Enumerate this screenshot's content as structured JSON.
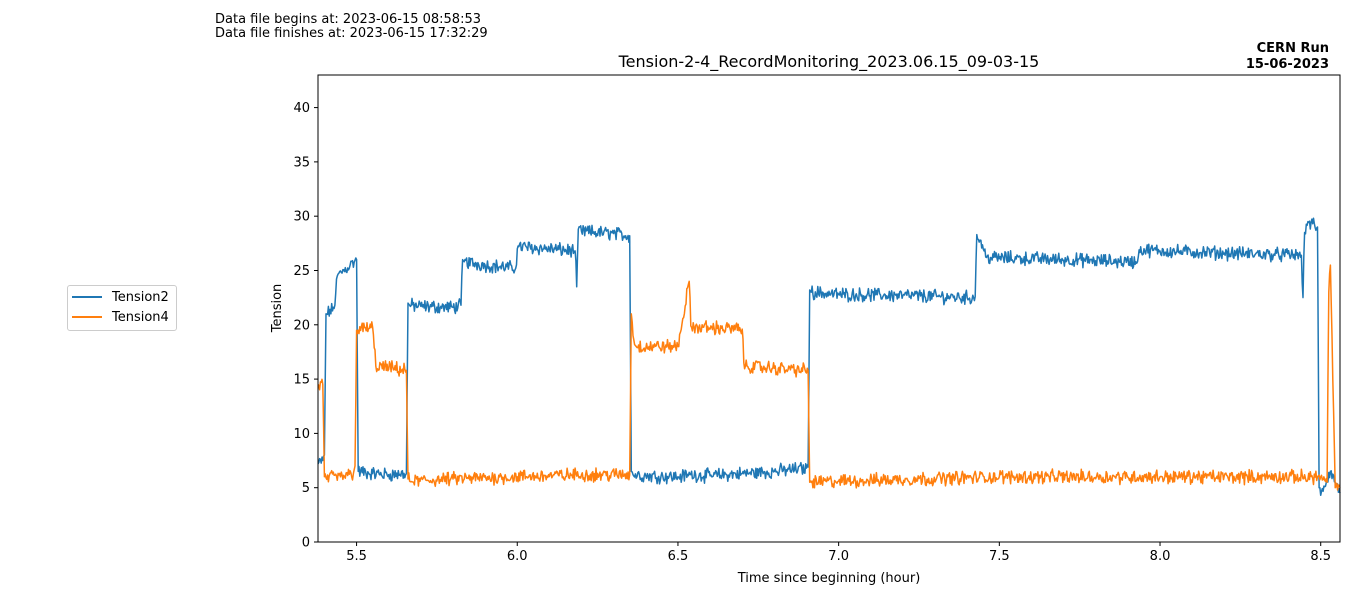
{
  "header": {
    "begin": "Data file begins at: 2023-06-15 08:58:53",
    "finish": "Data file finishes at: 2023-06-15 17:32:29",
    "run_name": "CERN Run",
    "run_date": "15-06-2023"
  },
  "chart_data": {
    "type": "line",
    "title": "Tension-2-4_RecordMonitoring_2023.06.15_09-03-15",
    "xlabel": "Time since beginning (hour)",
    "ylabel": "Tension",
    "xlim": [
      5.38,
      8.56
    ],
    "ylim": [
      0,
      43
    ],
    "xticks": [
      5.5,
      6.0,
      6.5,
      7.0,
      7.5,
      8.0,
      8.5
    ],
    "xtick_labels": [
      "5.5",
      "6.0",
      "6.5",
      "7.0",
      "7.5",
      "8.0",
      "8.5"
    ],
    "yticks": [
      0,
      5,
      10,
      15,
      20,
      25,
      30,
      35,
      40
    ],
    "ytick_labels": [
      "0",
      "5",
      "10",
      "15",
      "20",
      "25",
      "30",
      "35",
      "40"
    ],
    "grid": false,
    "legend_position": "left-outside",
    "series": [
      {
        "name": "Tension2",
        "color": "#1f77b4",
        "x": [
          5.38,
          5.395,
          5.4,
          5.405,
          5.43,
          5.44,
          5.48,
          5.5,
          5.505,
          5.55,
          5.6,
          5.655,
          5.66,
          5.665,
          5.7,
          5.8,
          5.825,
          5.83,
          5.835,
          5.9,
          5.995,
          6.0,
          6.005,
          6.1,
          6.18,
          6.185,
          6.19,
          6.2,
          6.3,
          6.35,
          6.355,
          6.36,
          6.4,
          6.5,
          6.54,
          6.6,
          6.7,
          6.8,
          6.9,
          6.905,
          6.91,
          6.915,
          7.0,
          7.2,
          7.42,
          7.425,
          7.43,
          7.44,
          7.46,
          7.6,
          7.8,
          7.925,
          7.93,
          7.935,
          8.0,
          8.2,
          8.44,
          8.445,
          8.45,
          8.46,
          8.49,
          8.495,
          8.5,
          8.53,
          8.56
        ],
        "values": [
          7.2,
          7.5,
          8,
          21,
          21.5,
          24.5,
          25.5,
          26,
          6.5,
          6.3,
          6.2,
          6.3,
          22,
          21.8,
          21.7,
          21.6,
          21.8,
          26,
          25.8,
          25.5,
          25.2,
          27,
          27.2,
          27,
          26.8,
          23.5,
          28.8,
          28.6,
          28.4,
          28.2,
          6.5,
          6.2,
          6.1,
          6.0,
          6.2,
          6.1,
          6.3,
          6.5,
          6.8,
          6.9,
          23.2,
          23.0,
          22.8,
          22.7,
          22.5,
          22.6,
          28.3,
          27.8,
          26.2,
          26.1,
          25.9,
          25.8,
          25.8,
          26.9,
          26.8,
          26.6,
          26.4,
          22.5,
          28.5,
          29.5,
          29.0,
          5.0,
          4.3,
          6.5,
          4.5
        ]
      },
      {
        "name": "Tension4",
        "color": "#ff7f0e",
        "x": [
          5.38,
          5.395,
          5.4,
          5.405,
          5.45,
          5.49,
          5.495,
          5.5,
          5.505,
          5.55,
          5.56,
          5.655,
          5.66,
          5.665,
          5.8,
          6.0,
          6.2,
          6.35,
          6.355,
          6.36,
          6.37,
          6.5,
          6.535,
          6.54,
          6.55,
          6.7,
          6.705,
          6.71,
          6.8,
          6.905,
          6.91,
          6.915,
          7.0,
          7.5,
          8.0,
          8.49,
          8.5,
          8.52,
          8.525,
          8.53,
          8.545,
          8.56
        ],
        "values": [
          14.5,
          14.5,
          6.0,
          5.9,
          6.0,
          6.3,
          7.0,
          19.5,
          19.5,
          19.8,
          16.2,
          15.8,
          5.8,
          5.6,
          5.8,
          6.0,
          6.2,
          6.2,
          21.0,
          19.0,
          18.0,
          18.0,
          24.0,
          19.9,
          19.8,
          19.6,
          16.5,
          16.2,
          16.0,
          15.8,
          5.5,
          5.5,
          5.6,
          6.0,
          6.0,
          6.0,
          6.0,
          5.5,
          23.0,
          25.5,
          5.0,
          5.0
        ]
      }
    ]
  }
}
